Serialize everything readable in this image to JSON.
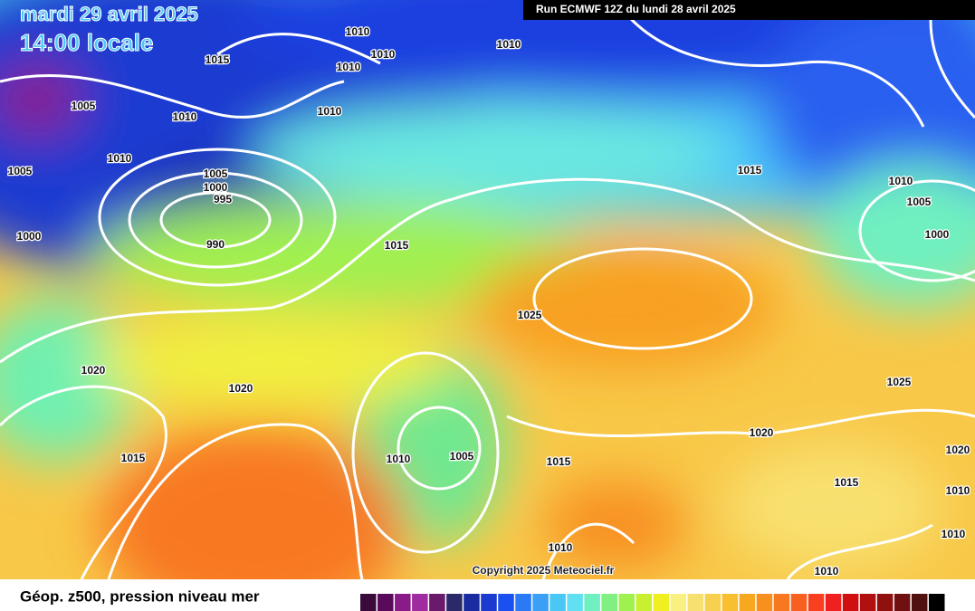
{
  "header": {
    "date": "mardi 29 avril 2025",
    "time": "14:00 locale",
    "run": "Run ECMWF 12Z du lundi 28 avril 2025"
  },
  "map": {
    "isobar_labels": [
      1015,
      1010,
      1010,
      1010,
      1010,
      1005,
      1010,
      1010,
      1005,
      1010,
      1005,
      1000,
      995,
      990,
      1000,
      1015,
      1015,
      1010,
      1005,
      1000,
      1025,
      1020,
      1020,
      1025,
      1020,
      1015,
      1010,
      1005,
      1015,
      1020,
      1015,
      1010,
      1010,
      1010,
      1010
    ],
    "copyright": "Copyright 2025 Meteociel.fr"
  },
  "legend": {
    "title": "Géop. z500, pression niveau mer",
    "colors": [
      "#3a0a3a",
      "#5a0a5a",
      "#8a1a8a",
      "#a02aa0",
      "#6a1a6a",
      "#2a2a6a",
      "#1a2aa0",
      "#1a3ad0",
      "#1a50f0",
      "#2a7af5",
      "#3aa0f5",
      "#4ac8f5",
      "#60e0f0",
      "#70f0c0",
      "#80f080",
      "#a0f050",
      "#c8f030",
      "#f0f020",
      "#f8f080",
      "#f8e070",
      "#f8d050",
      "#f8c030",
      "#f8a820",
      "#f89020",
      "#f87820",
      "#f86020",
      "#f84020",
      "#f02020",
      "#d01010",
      "#b01010",
      "#901010",
      "#701010",
      "#501010",
      "#000000"
    ]
  }
}
